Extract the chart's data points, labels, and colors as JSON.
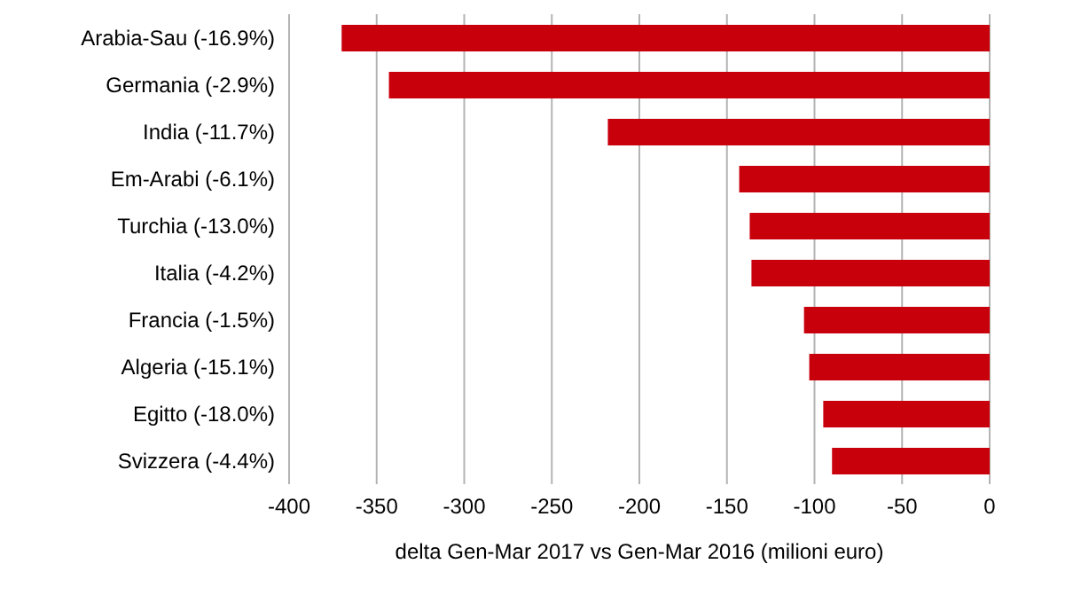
{
  "chart_data": {
    "type": "bar",
    "orientation": "horizontal",
    "xlabel": "delta Gen-Mar 2017 vs Gen-Mar 2016 (milioni euro)",
    "categories": [
      "Arabia-Sau (-16.9%)",
      "Germania (-2.9%)",
      "India (-11.7%)",
      "Em-Arabi (-6.1%)",
      "Turchia (-13.0%)",
      "Italia (-4.2%)",
      "Francia (-1.5%)",
      "Algeria (-15.1%)",
      "Egitto (-18.0%)",
      "Svizzera (-4.4%)"
    ],
    "values": [
      -370,
      -343,
      -218,
      -143,
      -137,
      -136,
      -106,
      -103,
      -95,
      -90
    ],
    "color": "#c8000b",
    "xlim": [
      -400,
      0
    ],
    "xticks": [
      -400,
      -350,
      -300,
      -250,
      -200,
      -150,
      -100,
      -50,
      0
    ],
    "grid": "x"
  }
}
